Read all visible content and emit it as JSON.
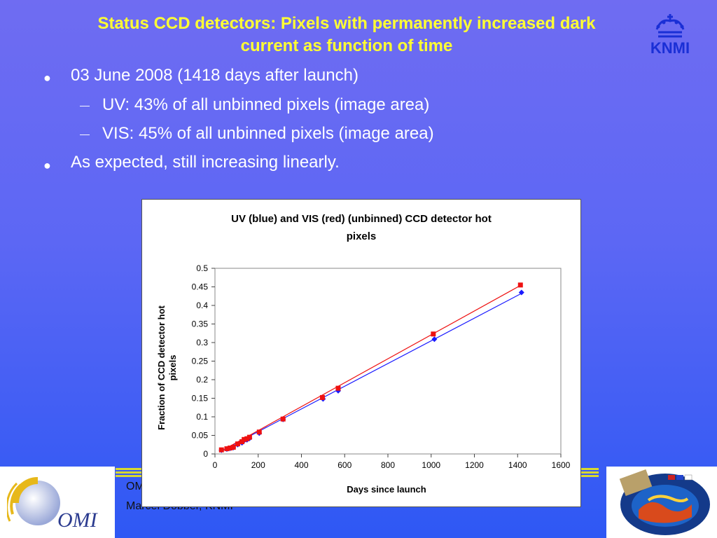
{
  "slide": {
    "title_line1": "Status CCD detectors: Pixels with permanently increased dark",
    "title_line2": "current as function of time",
    "logo_text": "KNMI",
    "bullets": [
      {
        "level": 1,
        "text": "03 June 2008 (1418 days after launch)"
      },
      {
        "level": 2,
        "text": "UV: 43% of all unbinned pixels (image area)"
      },
      {
        "level": 2,
        "text": "VIS: 45% of all unbinned pixels (image area)"
      },
      {
        "level": 1,
        "text": "As expected, still increasing linearly."
      }
    ],
    "footer_line1": "OMI",
    "footer_line2": "Marcel Dobber, KNMI",
    "omi_logo_text": "OMI"
  },
  "colors": {
    "title": "#ffff33",
    "uv_series": "#1a1aff",
    "vis_series": "#ee1111"
  },
  "chart_data": {
    "type": "scatter",
    "title": "UV (blue) and VIS (red) (unbinned) CCD detector hot pixels",
    "title_line1": "UV (blue) and VIS (red) (unbinned) CCD detector hot",
    "title_line2": "pixels",
    "xlabel": "Days since launch",
    "ylabel": "Fraction of CCD detector hot pixels",
    "ylabel_line1": "Fraction of CCD detector hot",
    "ylabel_line2": "pixels",
    "xlim": [
      0,
      1600
    ],
    "ylim": [
      0,
      0.5
    ],
    "xticks": [
      "0",
      "200",
      "400",
      "600",
      "800",
      "1000",
      "1200",
      "1400",
      "1600"
    ],
    "yticks": [
      "0",
      "0.05",
      "0.1",
      "0.15",
      "0.2",
      "0.25",
      "0.3",
      "0.35",
      "0.4",
      "0.45",
      "0.5"
    ],
    "grid": false,
    "series": [
      {
        "name": "UV",
        "color": "#1a1aff",
        "marker": "diamond",
        "x": [
          30,
          55,
          70,
          85,
          105,
          125,
          135,
          148,
          160,
          205,
          315,
          500,
          570,
          1015,
          1418
        ],
        "y": [
          0.01,
          0.013,
          0.015,
          0.017,
          0.025,
          0.03,
          0.036,
          0.038,
          0.042,
          0.056,
          0.093,
          0.148,
          0.17,
          0.309,
          0.435
        ]
      },
      {
        "name": "VIS",
        "color": "#ee1111",
        "marker": "square",
        "x": [
          30,
          55,
          70,
          85,
          105,
          125,
          135,
          148,
          160,
          205,
          315,
          497,
          570,
          1010,
          1413
        ],
        "y": [
          0.011,
          0.014,
          0.016,
          0.018,
          0.027,
          0.033,
          0.039,
          0.041,
          0.045,
          0.059,
          0.094,
          0.152,
          0.177,
          0.323,
          0.455
        ]
      }
    ],
    "trendlines": [
      {
        "series": "UV",
        "color": "#1a1aff",
        "x": [
          20,
          1420
        ],
        "y": [
          0.005,
          0.433
        ]
      },
      {
        "series": "VIS",
        "color": "#ee1111",
        "x": [
          20,
          1420
        ],
        "y": [
          0.005,
          0.456
        ]
      }
    ]
  }
}
